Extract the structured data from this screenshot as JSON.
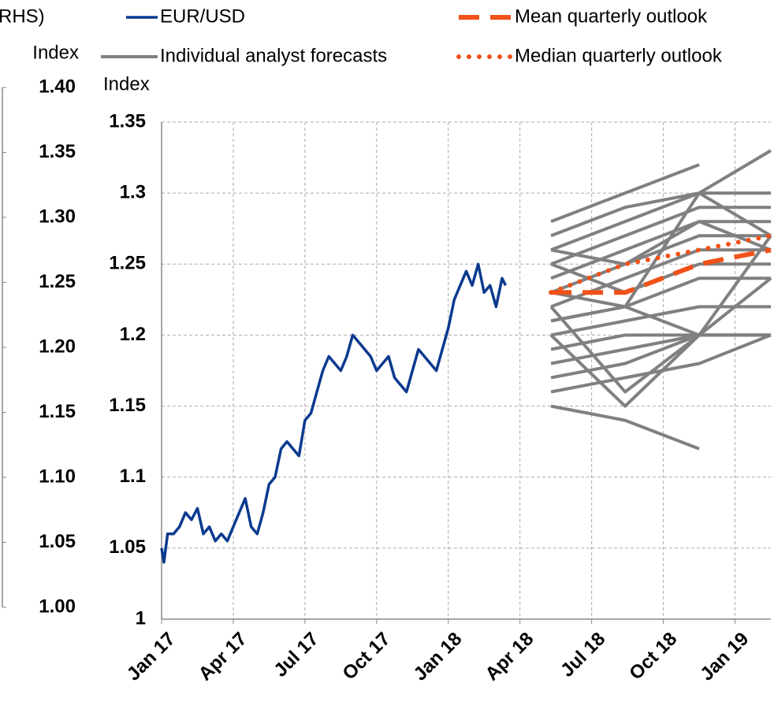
{
  "chart_data": [
    {
      "type": "line",
      "title": "RHS)",
      "y_label": "Index",
      "ylim": [
        1.0,
        1.4
      ],
      "yticks": [
        {
          "value": 1.0,
          "label": "1.00"
        },
        {
          "value": 1.05,
          "label": "1.05"
        },
        {
          "value": 1.1,
          "label": "1.10"
        },
        {
          "value": 1.15,
          "label": "1.15"
        },
        {
          "value": 1.2,
          "label": "1.20"
        },
        {
          "value": 1.25,
          "label": "1.25"
        },
        {
          "value": 1.3,
          "label": "1.30"
        },
        {
          "value": 1.35,
          "label": "1.35"
        },
        {
          "value": 1.4,
          "label": "1.40"
        }
      ]
    },
    {
      "type": "line",
      "y_label": "Index",
      "xlim": [
        0,
        25.5
      ],
      "xticks": [
        {
          "value": 0,
          "label": "Jan 17"
        },
        {
          "value": 3,
          "label": "Apr 17"
        },
        {
          "value": 6,
          "label": "Jul 17"
        },
        {
          "value": 9,
          "label": "Oct 17"
        },
        {
          "value": 12,
          "label": "Jan 18"
        },
        {
          "value": 15,
          "label": "Apr 18"
        },
        {
          "value": 18,
          "label": "Jul 18"
        },
        {
          "value": 21,
          "label": "Oct 18"
        },
        {
          "value": 24,
          "label": "Jan 19"
        }
      ],
      "ylim": [
        1,
        1.35
      ],
      "yticks": [
        1,
        1.05,
        1.1,
        1.15,
        1.2,
        1.25,
        1.3,
        1.35
      ],
      "grid": true,
      "series": [
        {
          "name": "EUR/USD",
          "color": "#0b3a8f",
          "style": "solid",
          "x": [
            0,
            0.1,
            0.25,
            0.5,
            0.75,
            1,
            1.25,
            1.5,
            1.75,
            2,
            2.25,
            2.5,
            2.75,
            3,
            3.25,
            3.5,
            3.75,
            4,
            4.25,
            4.5,
            4.75,
            5,
            5.25,
            5.5,
            5.75,
            6,
            6.25,
            6.5,
            6.75,
            7,
            7.25,
            7.5,
            7.75,
            8,
            8.25,
            8.5,
            8.75,
            9,
            9.25,
            9.5,
            9.75,
            10,
            10.25,
            10.5,
            10.75,
            11,
            11.25,
            11.5,
            11.75,
            12,
            12.25,
            12.5,
            12.75,
            13,
            13.25,
            13.5,
            13.75,
            14,
            14.25,
            14.4
          ],
          "values": [
            1.05,
            1.04,
            1.06,
            1.06,
            1.065,
            1.075,
            1.07,
            1.078,
            1.06,
            1.065,
            1.055,
            1.06,
            1.055,
            1.065,
            1.075,
            1.085,
            1.065,
            1.06,
            1.075,
            1.095,
            1.1,
            1.12,
            1.125,
            1.12,
            1.115,
            1.14,
            1.145,
            1.16,
            1.175,
            1.185,
            1.18,
            1.175,
            1.185,
            1.2,
            1.195,
            1.19,
            1.185,
            1.175,
            1.18,
            1.185,
            1.17,
            1.165,
            1.16,
            1.175,
            1.19,
            1.185,
            1.18,
            1.175,
            1.19,
            1.205,
            1.225,
            1.235,
            1.245,
            1.235,
            1.25,
            1.23,
            1.235,
            1.22,
            1.24,
            1.235
          ]
        },
        {
          "name": "Mean quarterly outlook",
          "color": "#f0521a",
          "style": "dashed",
          "x": [
            16.3,
            19.4,
            22.5,
            25.5
          ],
          "values": [
            1.23,
            1.23,
            1.25,
            1.26
          ]
        },
        {
          "name": "Median quarterly outlook",
          "color": "#f0521a",
          "style": "dotted",
          "x": [
            16.3,
            19.4,
            22.5,
            25.5
          ],
          "values": [
            1.23,
            1.25,
            1.26,
            1.27
          ]
        }
      ],
      "forecasts": {
        "name": "Individual analyst forecasts",
        "color": "#808080",
        "x": [
          16.3,
          19.4,
          22.5,
          25.5
        ],
        "lines": [
          [
            1.28,
            1.3,
            1.32,
            null
          ],
          [
            1.27,
            1.29,
            1.3,
            1.33
          ],
          [
            1.26,
            1.28,
            1.3,
            1.3
          ],
          [
            1.25,
            1.27,
            1.29,
            1.29
          ],
          [
            1.24,
            1.26,
            1.28,
            1.28
          ],
          [
            1.23,
            1.25,
            1.27,
            1.27
          ],
          [
            1.22,
            1.24,
            1.26,
            1.26
          ],
          [
            1.25,
            1.23,
            1.25,
            1.25
          ],
          [
            1.21,
            1.22,
            1.24,
            1.24
          ],
          [
            1.2,
            1.21,
            1.22,
            1.22
          ],
          [
            1.19,
            1.2,
            1.2,
            1.2
          ],
          [
            1.18,
            1.19,
            1.2,
            1.2
          ],
          [
            1.17,
            1.18,
            1.2,
            1.2
          ],
          [
            1.16,
            1.17,
            1.18,
            1.2
          ],
          [
            1.15,
            1.14,
            1.12,
            null
          ],
          [
            1.2,
            1.15,
            1.2,
            1.2
          ],
          [
            1.22,
            1.16,
            1.2,
            1.27
          ],
          [
            1.23,
            1.22,
            1.3,
            1.27
          ],
          [
            1.26,
            1.25,
            1.28,
            1.26
          ],
          [
            1.21,
            1.22,
            1.2,
            1.24
          ]
        ]
      }
    }
  ]
}
